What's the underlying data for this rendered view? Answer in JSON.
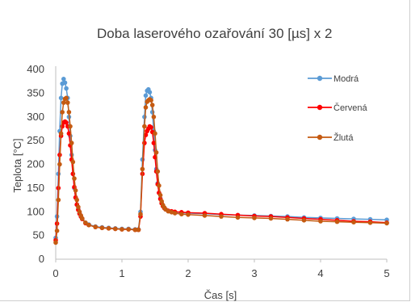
{
  "chart_data": {
    "type": "line",
    "title": "Doba laserového ozařování 30 [µs] x 2",
    "xlabel": "Čas [s]",
    "ylabel": "Teplota [°C]",
    "xlim": [
      0,
      5
    ],
    "ylim": [
      0,
      400
    ],
    "xticks": [
      0,
      1,
      2,
      3,
      4,
      5
    ],
    "yticks": [
      0,
      50,
      100,
      150,
      200,
      250,
      300,
      350,
      400
    ],
    "grid": false,
    "legend": "right",
    "series": [
      {
        "name": "Modrá",
        "color": "#5B9BD5",
        "x": [
          0.0,
          0.02,
          0.04,
          0.06,
          0.08,
          0.1,
          0.12,
          0.14,
          0.16,
          0.18,
          0.2,
          0.22,
          0.24,
          0.26,
          0.28,
          0.3,
          0.32,
          0.34,
          0.36,
          0.38,
          0.4,
          0.45,
          0.5,
          0.6,
          0.7,
          0.8,
          0.9,
          1.0,
          1.1,
          1.2,
          1.25,
          1.28,
          1.31,
          1.34,
          1.36,
          1.38,
          1.4,
          1.42,
          1.44,
          1.46,
          1.48,
          1.5,
          1.52,
          1.54,
          1.56,
          1.58,
          1.6,
          1.62,
          1.64,
          1.66,
          1.7,
          1.75,
          1.8,
          1.9,
          2.0,
          2.25,
          2.5,
          2.75,
          3.0,
          3.25,
          3.5,
          3.75,
          4.0,
          4.25,
          4.5,
          4.75,
          5.0
        ],
        "y": [
          45,
          90,
          180,
          270,
          340,
          370,
          380,
          372,
          360,
          340,
          300,
          260,
          220,
          180,
          150,
          130,
          115,
          105,
          97,
          90,
          85,
          77,
          73,
          69,
          67,
          66,
          65,
          64,
          64,
          63,
          63,
          100,
          210,
          300,
          345,
          355,
          358,
          352,
          340,
          310,
          270,
          230,
          190,
          160,
          140,
          128,
          118,
          112,
          108,
          105,
          102,
          100,
          99,
          98,
          97,
          96,
          94,
          93,
          92,
          91,
          90,
          88,
          87,
          86,
          85,
          84,
          83
        ]
      },
      {
        "name": "Červená",
        "color": "#FF0000",
        "x": [
          0.0,
          0.02,
          0.04,
          0.06,
          0.08,
          0.1,
          0.12,
          0.14,
          0.16,
          0.18,
          0.2,
          0.22,
          0.24,
          0.26,
          0.28,
          0.3,
          0.32,
          0.34,
          0.36,
          0.38,
          0.4,
          0.45,
          0.5,
          0.6,
          0.7,
          0.8,
          0.9,
          1.0,
          1.1,
          1.2,
          1.25,
          1.28,
          1.31,
          1.34,
          1.36,
          1.38,
          1.4,
          1.42,
          1.44,
          1.46,
          1.48,
          1.5,
          1.52,
          1.54,
          1.56,
          1.58,
          1.6,
          1.62,
          1.64,
          1.66,
          1.7,
          1.75,
          1.8,
          1.9,
          2.0,
          2.25,
          2.5,
          2.75,
          3.0,
          3.25,
          3.5,
          3.75,
          4.0,
          4.25,
          4.5,
          4.75,
          5.0
        ],
        "y": [
          40,
          75,
          150,
          220,
          260,
          280,
          288,
          290,
          288,
          280,
          265,
          240,
          210,
          180,
          152,
          130,
          115,
          104,
          96,
          90,
          85,
          76,
          72,
          68,
          66,
          65,
          64,
          63,
          63,
          62,
          62,
          90,
          180,
          245,
          262,
          270,
          275,
          280,
          278,
          268,
          245,
          215,
          185,
          158,
          140,
          127,
          118,
          112,
          108,
          105,
          102,
          101,
          100,
          99,
          98,
          97,
          95,
          93,
          91,
          90,
          88,
          86,
          84,
          82,
          80,
          79,
          77
        ]
      },
      {
        "name": "Žlutá",
        "color": "#C55A11",
        "x": [
          0.0,
          0.02,
          0.04,
          0.06,
          0.08,
          0.1,
          0.12,
          0.14,
          0.16,
          0.18,
          0.2,
          0.22,
          0.24,
          0.26,
          0.28,
          0.3,
          0.32,
          0.34,
          0.36,
          0.38,
          0.4,
          0.45,
          0.5,
          0.6,
          0.7,
          0.8,
          0.9,
          1.0,
          1.1,
          1.2,
          1.25,
          1.28,
          1.31,
          1.34,
          1.36,
          1.38,
          1.4,
          1.42,
          1.44,
          1.46,
          1.48,
          1.5,
          1.52,
          1.54,
          1.56,
          1.58,
          1.6,
          1.62,
          1.64,
          1.66,
          1.7,
          1.75,
          1.8,
          1.9,
          2.0,
          2.25,
          2.5,
          2.75,
          3.0,
          3.25,
          3.5,
          3.75,
          4.0,
          4.25,
          4.5,
          4.75,
          5.0
        ],
        "y": [
          35,
          60,
          125,
          200,
          265,
          310,
          330,
          338,
          340,
          330,
          310,
          280,
          245,
          205,
          170,
          145,
          125,
          110,
          100,
          92,
          86,
          77,
          72,
          68,
          66,
          65,
          64,
          63,
          63,
          62,
          62,
          95,
          190,
          280,
          320,
          332,
          335,
          337,
          335,
          325,
          300,
          265,
          225,
          185,
          155,
          135,
          122,
          114,
          109,
          105,
          101,
          99,
          97,
          95,
          94,
          92,
          90,
          88,
          87,
          86,
          84,
          82,
          80,
          79,
          78,
          77,
          76
        ]
      }
    ]
  }
}
